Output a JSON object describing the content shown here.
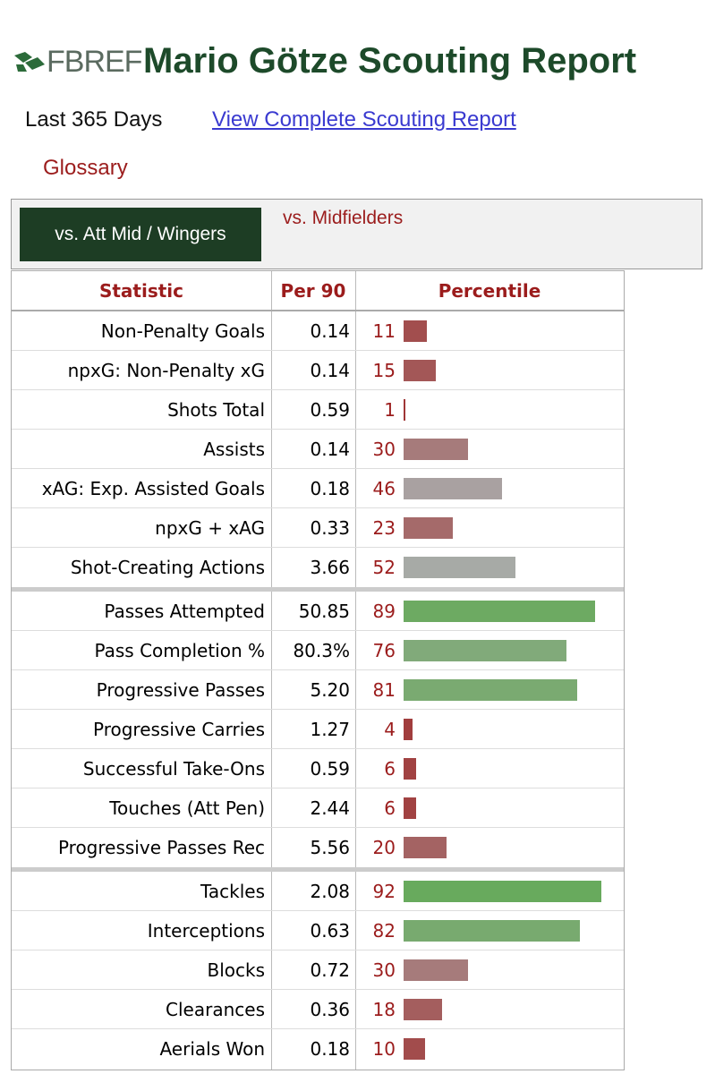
{
  "header": {
    "logo": "FBREF",
    "title": "Mario Götze Scouting Report"
  },
  "period": "Last 365 Days",
  "links": {
    "report": "View Complete Scouting Report",
    "glossary": "Glossary"
  },
  "tabs": [
    "vs. Att Mid / Wingers",
    "vs. Midfielders"
  ],
  "table": {
    "columns": [
      "Statistic",
      "Per 90",
      "Percentile"
    ],
    "groups": [
      {
        "rows": [
          {
            "statistic": "Non-Penalty Goals",
            "per90": "0.14",
            "percentile": 11
          },
          {
            "statistic": "npxG: Non-Penalty xG",
            "per90": "0.14",
            "percentile": 15
          },
          {
            "statistic": "Shots Total",
            "per90": "0.59",
            "percentile": 1
          },
          {
            "statistic": "Assists",
            "per90": "0.14",
            "percentile": 30
          },
          {
            "statistic": "xAG: Exp. Assisted Goals",
            "per90": "0.18",
            "percentile": 46
          },
          {
            "statistic": "npxG + xAG",
            "per90": "0.33",
            "percentile": 23
          },
          {
            "statistic": "Shot-Creating Actions",
            "per90": "3.66",
            "percentile": 52
          }
        ]
      },
      {
        "rows": [
          {
            "statistic": "Passes Attempted",
            "per90": "50.85",
            "percentile": 89
          },
          {
            "statistic": "Pass Completion %",
            "per90": "80.3%",
            "percentile": 76
          },
          {
            "statistic": "Progressive Passes",
            "per90": "5.20",
            "percentile": 81
          },
          {
            "statistic": "Progressive Carries",
            "per90": "1.27",
            "percentile": 4
          },
          {
            "statistic": "Successful Take-Ons",
            "per90": "0.59",
            "percentile": 6
          },
          {
            "statistic": "Touches (Att Pen)",
            "per90": "2.44",
            "percentile": 6
          },
          {
            "statistic": "Progressive Passes Rec",
            "per90": "5.56",
            "percentile": 20
          }
        ]
      },
      {
        "rows": [
          {
            "statistic": "Tackles",
            "per90": "2.08",
            "percentile": 92
          },
          {
            "statistic": "Interceptions",
            "per90": "0.63",
            "percentile": 82
          },
          {
            "statistic": "Blocks",
            "per90": "0.72",
            "percentile": 30
          },
          {
            "statistic": "Clearances",
            "per90": "0.36",
            "percentile": 18
          },
          {
            "statistic": "Aerials Won",
            "per90": "0.18",
            "percentile": 10
          }
        ]
      }
    ]
  }
}
